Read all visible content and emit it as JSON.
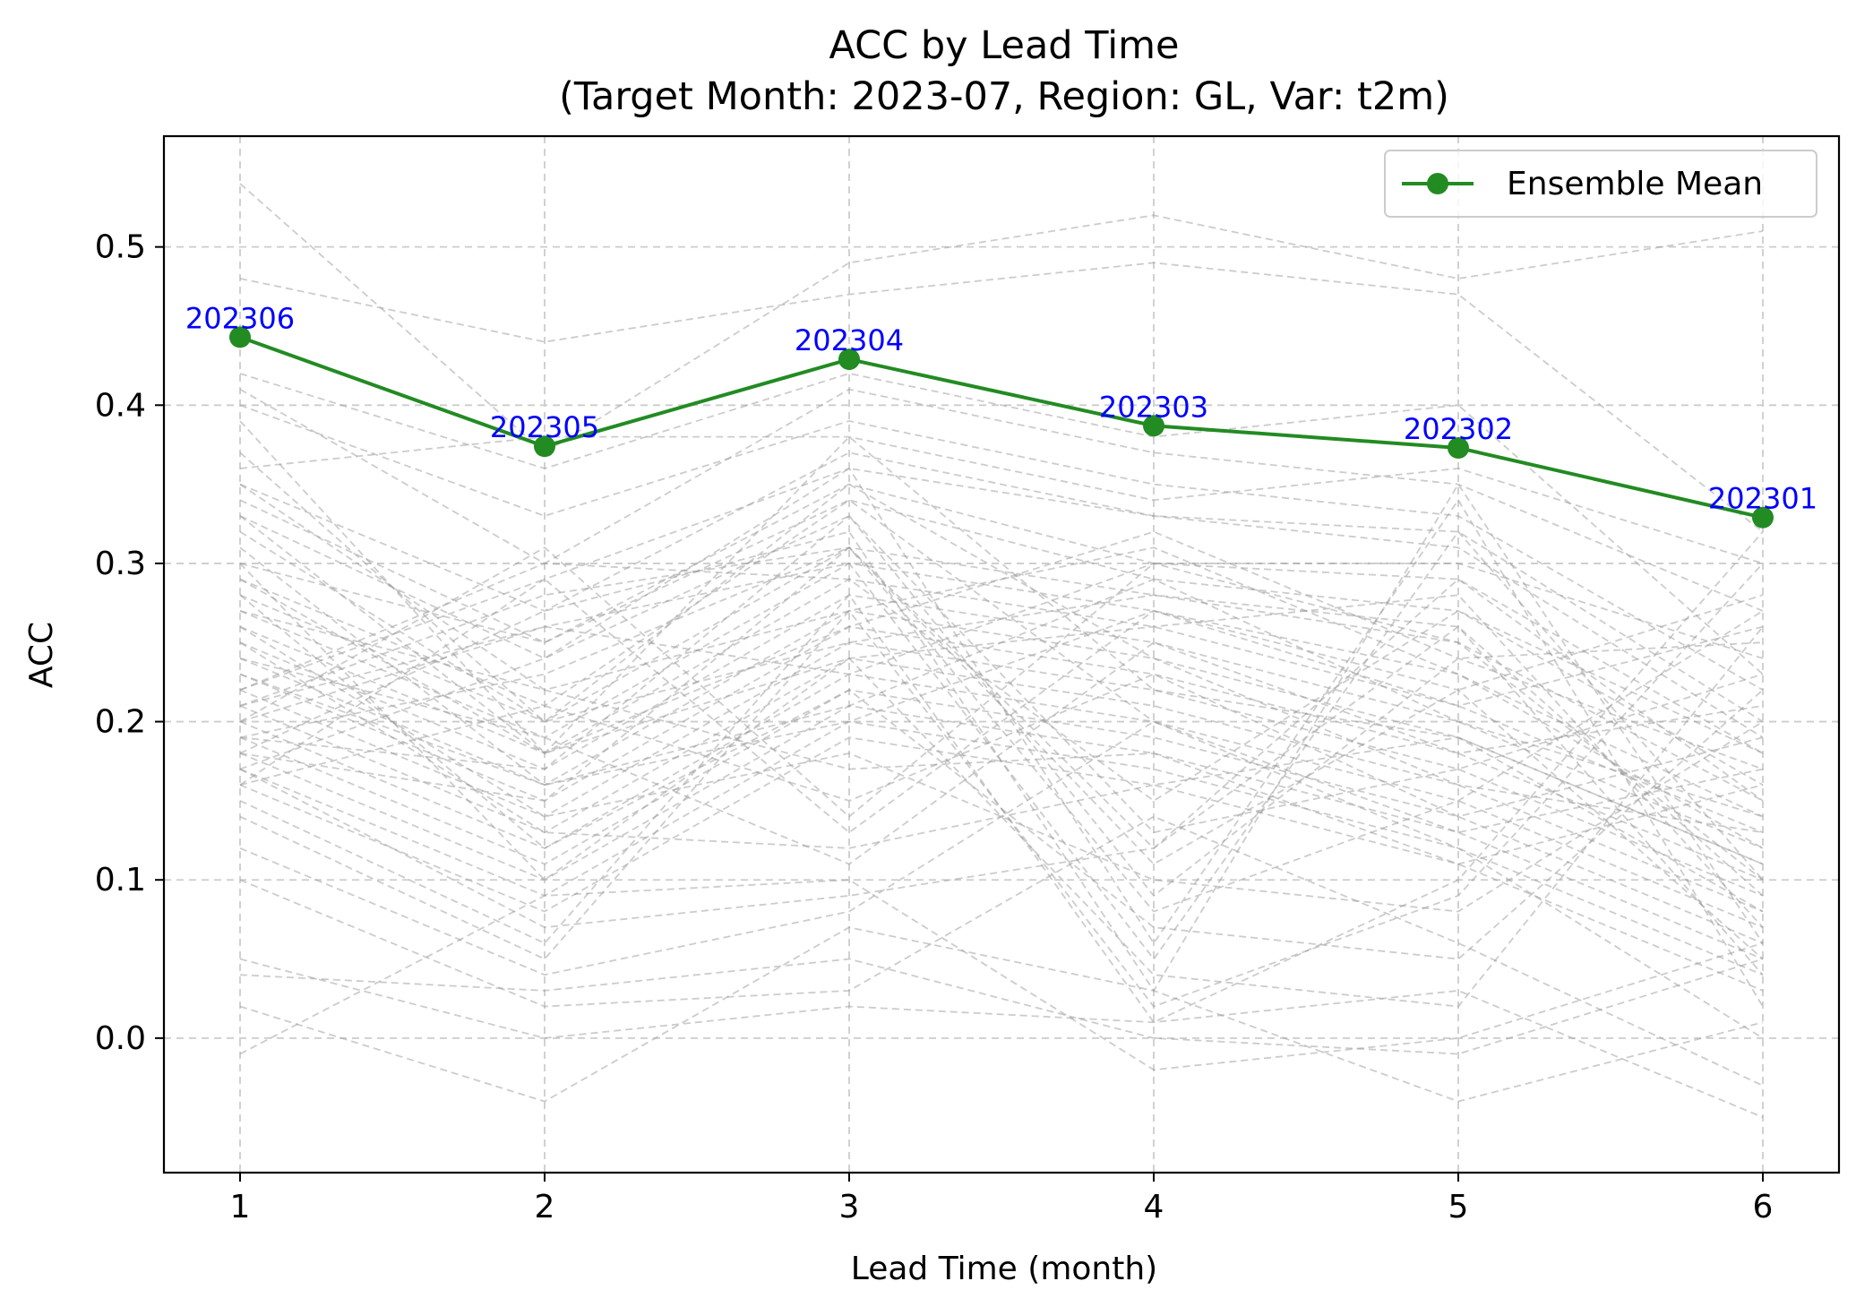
{
  "chart_data": {
    "type": "line",
    "title": "ACC by Lead Time",
    "subtitle": "(Target Month: 2023-07, Region: GL, Var: t2m)",
    "xlabel": "Lead Time (month)",
    "ylabel": "ACC",
    "x": [
      1,
      2,
      3,
      4,
      5,
      6
    ],
    "x_tick_labels": [
      "1",
      "2",
      "3",
      "4",
      "5",
      "6"
    ],
    "y_ticks": [
      0.0,
      0.1,
      0.2,
      0.3,
      0.4,
      0.5
    ],
    "y_tick_labels": [
      "0.0",
      "0.1",
      "0.2",
      "0.3",
      "0.4",
      "0.5"
    ],
    "xlim": [
      0.75,
      6.25
    ],
    "ylim": [
      -0.085,
      0.57
    ],
    "grid": true,
    "legend": {
      "placement": "top-right",
      "entries": [
        "Ensemble Mean"
      ]
    },
    "colors": {
      "ensemble_mean": "#228B22",
      "annotation": "#0000FF",
      "member": "#999999",
      "grid": "#cccccc"
    },
    "series": [
      {
        "name": "Ensemble Mean",
        "values": [
          0.443,
          0.374,
          0.429,
          0.387,
          0.373,
          0.329
        ],
        "annotations": [
          "202306",
          "202305",
          "202304",
          "202303",
          "202302",
          "202301"
        ]
      }
    ],
    "members": [
      [
        0.54,
        0.37,
        0.49,
        0.52,
        0.48,
        0.51
      ],
      [
        0.48,
        0.44,
        0.47,
        0.49,
        0.47,
        0.32
      ],
      [
        0.42,
        0.36,
        0.42,
        0.38,
        0.4,
        0.23
      ],
      [
        0.41,
        0.3,
        0.41,
        0.37,
        0.35,
        0.27
      ],
      [
        0.4,
        0.33,
        0.39,
        0.35,
        0.33,
        0.22
      ],
      [
        0.36,
        0.38,
        0.38,
        0.34,
        0.36,
        0.3
      ],
      [
        0.35,
        0.27,
        0.37,
        0.33,
        0.32,
        0.2
      ],
      [
        0.33,
        0.24,
        0.36,
        0.33,
        0.31,
        0.19
      ],
      [
        0.3,
        0.25,
        0.35,
        0.3,
        0.29,
        0.18
      ],
      [
        0.29,
        0.21,
        0.34,
        0.29,
        0.27,
        0.16
      ],
      [
        0.28,
        0.2,
        0.31,
        0.28,
        0.25,
        0.15
      ],
      [
        0.27,
        0.19,
        0.3,
        0.27,
        0.23,
        0.14
      ],
      [
        0.26,
        0.18,
        0.29,
        0.26,
        0.21,
        0.13
      ],
      [
        0.25,
        0.17,
        0.28,
        0.25,
        0.2,
        0.12
      ],
      [
        0.24,
        0.16,
        0.27,
        0.24,
        0.19,
        0.11
      ],
      [
        0.23,
        0.15,
        0.26,
        0.23,
        0.18,
        0.1
      ],
      [
        0.22,
        0.14,
        0.25,
        0.22,
        0.17,
        0.09
      ],
      [
        0.21,
        0.13,
        0.24,
        0.21,
        0.16,
        0.08
      ],
      [
        0.2,
        0.12,
        0.23,
        0.2,
        0.15,
        0.07
      ],
      [
        0.19,
        0.11,
        0.22,
        0.19,
        0.14,
        0.06
      ],
      [
        0.18,
        0.1,
        0.21,
        0.18,
        0.13,
        0.05
      ],
      [
        0.17,
        0.09,
        0.2,
        0.17,
        0.12,
        0.04
      ],
      [
        0.16,
        0.08,
        0.19,
        0.16,
        0.11,
        0.03
      ],
      [
        0.16,
        0.29,
        0.36,
        0.06,
        0.34,
        0.02
      ],
      [
        0.18,
        0.27,
        0.32,
        0.03,
        0.35,
        0.06
      ],
      [
        0.2,
        0.26,
        0.3,
        0.05,
        0.32,
        0.1
      ],
      [
        0.21,
        0.28,
        0.31,
        0.12,
        0.29,
        0.15
      ],
      [
        0.22,
        0.3,
        0.29,
        0.15,
        0.27,
        0.18
      ],
      [
        0.17,
        0.24,
        0.33,
        0.09,
        0.24,
        0.25
      ],
      [
        0.19,
        0.23,
        0.31,
        0.11,
        0.22,
        0.28
      ],
      [
        0.15,
        0.06,
        0.28,
        0.01,
        0.1,
        0.32
      ],
      [
        0.14,
        0.05,
        0.27,
        0.02,
        0.09,
        0.3
      ],
      [
        0.3,
        0.1,
        0.24,
        0.04,
        0.02,
        0.26
      ],
      [
        0.28,
        0.12,
        0.22,
        0.07,
        0.05,
        0.22
      ],
      [
        0.26,
        0.14,
        0.18,
        0.1,
        0.08,
        0.2
      ],
      [
        0.04,
        0.03,
        0.05,
        0.0,
        -0.01,
        0.05
      ],
      [
        -0.01,
        0.09,
        0.1,
        -0.02,
        0.0,
        0.06
      ],
      [
        0.02,
        -0.04,
        0.07,
        0.03,
        -0.04,
        0.01
      ],
      [
        0.05,
        0.0,
        0.02,
        0.01,
        0.03,
        -0.05
      ],
      [
        0.1,
        0.02,
        0.03,
        0.14,
        0.06,
        -0.03
      ],
      [
        0.12,
        0.04,
        0.08,
        0.2,
        0.12,
        0.0
      ],
      [
        0.33,
        0.18,
        0.26,
        0.32,
        0.24,
        0.17
      ],
      [
        0.31,
        0.16,
        0.21,
        0.29,
        0.2,
        0.14
      ],
      [
        0.35,
        0.22,
        0.27,
        0.31,
        0.23,
        0.12
      ],
      [
        0.37,
        0.2,
        0.25,
        0.28,
        0.26,
        0.09
      ],
      [
        0.39,
        0.18,
        0.24,
        0.26,
        0.28,
        0.07
      ],
      [
        0.2,
        0.31,
        0.14,
        0.3,
        0.3,
        0.24
      ],
      [
        0.22,
        0.29,
        0.13,
        0.27,
        0.21,
        0.26
      ],
      [
        0.24,
        0.19,
        0.11,
        0.25,
        0.18,
        0.21
      ],
      [
        0.16,
        0.21,
        0.15,
        0.23,
        0.14,
        0.19
      ],
      [
        0.27,
        0.22,
        0.17,
        0.18,
        0.11,
        0.16
      ],
      [
        0.29,
        0.18,
        0.38,
        0.22,
        0.19,
        0.11
      ],
      [
        0.32,
        0.2,
        0.35,
        0.24,
        0.16,
        0.13
      ],
      [
        0.34,
        0.25,
        0.34,
        0.2,
        0.13,
        0.17
      ],
      [
        0.19,
        0.17,
        0.33,
        0.13,
        0.17,
        0.23
      ],
      [
        0.18,
        0.15,
        0.31,
        0.08,
        0.15,
        0.27
      ],
      [
        0.21,
        0.26,
        0.23,
        0.3,
        0.25,
        0.1
      ],
      [
        0.23,
        0.16,
        0.2,
        0.27,
        0.22,
        0.05
      ],
      [
        0.25,
        0.13,
        0.12,
        0.16,
        0.19,
        0.08
      ],
      [
        0.17,
        0.07,
        0.09,
        0.12,
        0.26,
        0.04
      ]
    ]
  }
}
